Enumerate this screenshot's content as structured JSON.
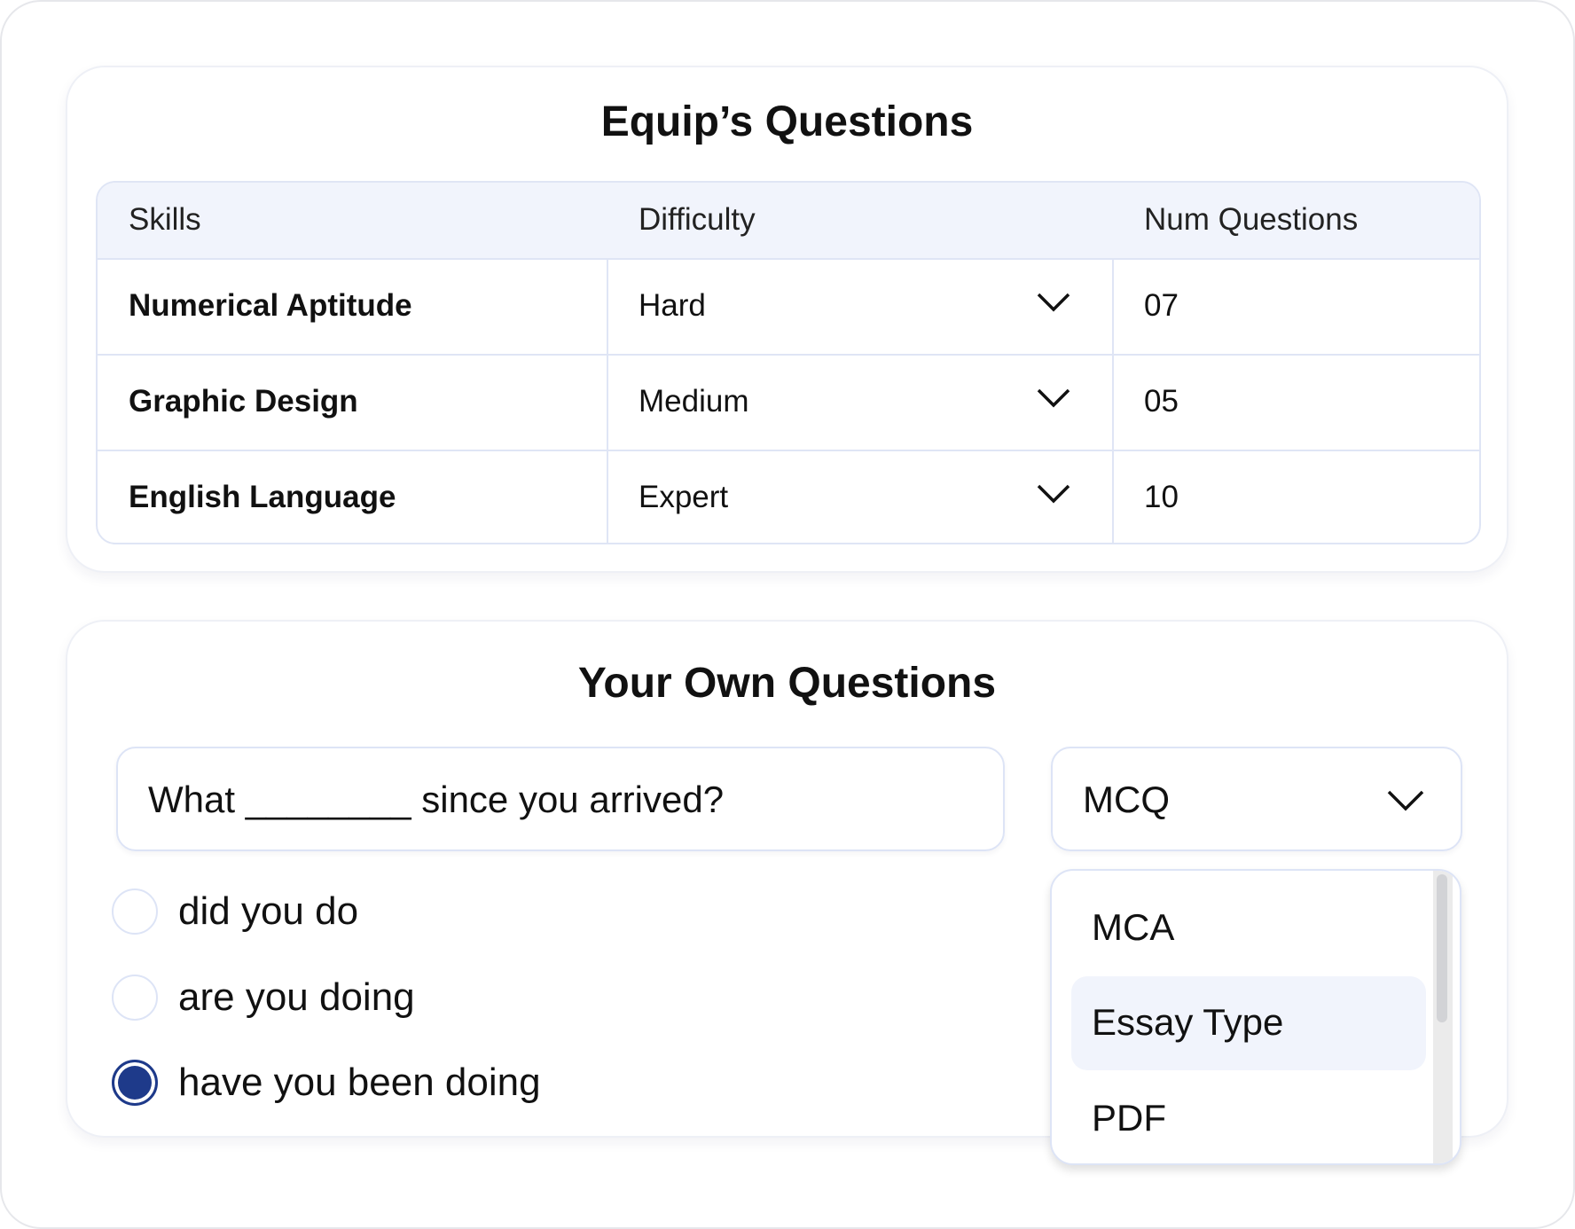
{
  "equip": {
    "title": "Equip’s Questions",
    "headers": [
      "Skills",
      "Difficulty",
      "Num Questions"
    ],
    "rows": [
      {
        "skill": "Numerical Aptitude",
        "difficulty": "Hard",
        "num": "07"
      },
      {
        "skill": "Graphic Design",
        "difficulty": "Medium",
        "num": "05"
      },
      {
        "skill": "English Language",
        "difficulty": "Expert",
        "num": "10"
      }
    ]
  },
  "own": {
    "title": "Your Own Questions",
    "question": "What ________ since you arrived?",
    "type_selected": "MCQ",
    "options": [
      {
        "label": "did you do",
        "selected": false
      },
      {
        "label": "are you doing",
        "selected": false
      },
      {
        "label": "have you been doing",
        "selected": true
      }
    ],
    "type_menu": [
      {
        "label": "MCA",
        "highlighted": false
      },
      {
        "label": "Essay Type",
        "highlighted": true
      },
      {
        "label": "PDF",
        "highlighted": false
      }
    ]
  },
  "colors": {
    "accent": "#1e3a8a",
    "header_bg": "#f1f4fc",
    "border": "#dfe5f5"
  }
}
